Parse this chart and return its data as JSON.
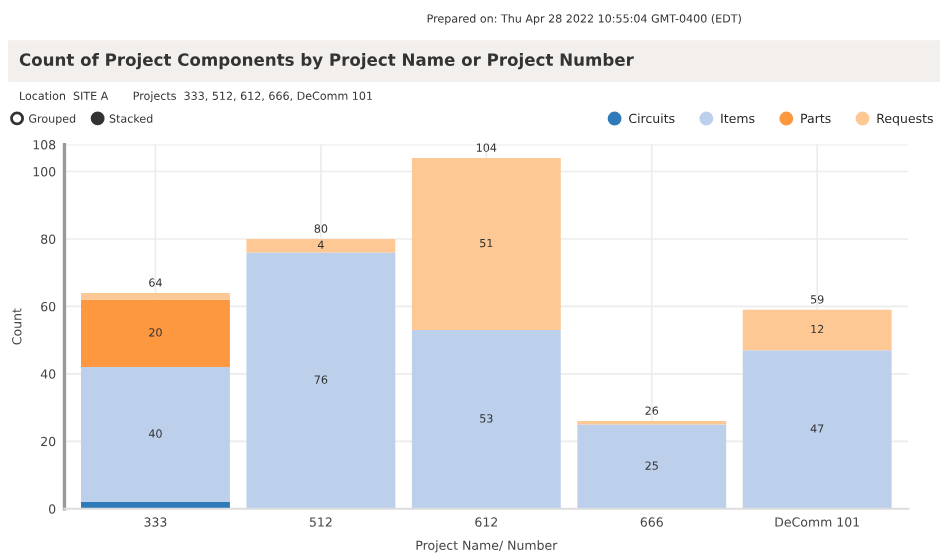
{
  "chart_data": {
    "type": "bar",
    "stacked": true,
    "title": "Count of Project Components by Project Name or Project Number",
    "xlabel": "Project Name/ Number",
    "ylabel": "Count",
    "categories": [
      "333",
      "512",
      "612",
      "666",
      "DeComm 101"
    ],
    "series": [
      {
        "name": "Circuits",
        "color": "#2f7ab9",
        "values": [
          2,
          0,
          0,
          0,
          0
        ],
        "value_labels": [
          null,
          null,
          null,
          null,
          null
        ]
      },
      {
        "name": "Items",
        "color": "#bcd0ec",
        "values": [
          40,
          76,
          53,
          25,
          47
        ],
        "value_labels": [
          "40",
          "76",
          "53",
          "25",
          "47"
        ]
      },
      {
        "name": "Parts",
        "color": "#fd9840",
        "values": [
          20,
          0,
          0,
          0,
          0
        ],
        "value_labels": [
          "20",
          null,
          null,
          null,
          null
        ]
      },
      {
        "name": "Requests",
        "color": "#fdc894",
        "values": [
          2,
          4,
          51,
          1,
          12
        ],
        "value_labels": [
          null,
          "4",
          "51",
          null,
          "12"
        ]
      }
    ],
    "totals": [
      "64",
      "80",
      "104",
      "26",
      "59"
    ],
    "ylim": [
      0,
      108
    ],
    "yticks": [
      0,
      20,
      40,
      60,
      80,
      100,
      108
    ],
    "grid": true,
    "legend": "top right",
    "annotations": [
      "Prepared on: Thu Apr 28 2022 10:55:04 GMT-0400 (EDT)",
      "Location  SITE A",
      "Projects  333, 512, 612, 666, DeComm 101",
      "Grouped",
      "Stacked"
    ]
  }
}
